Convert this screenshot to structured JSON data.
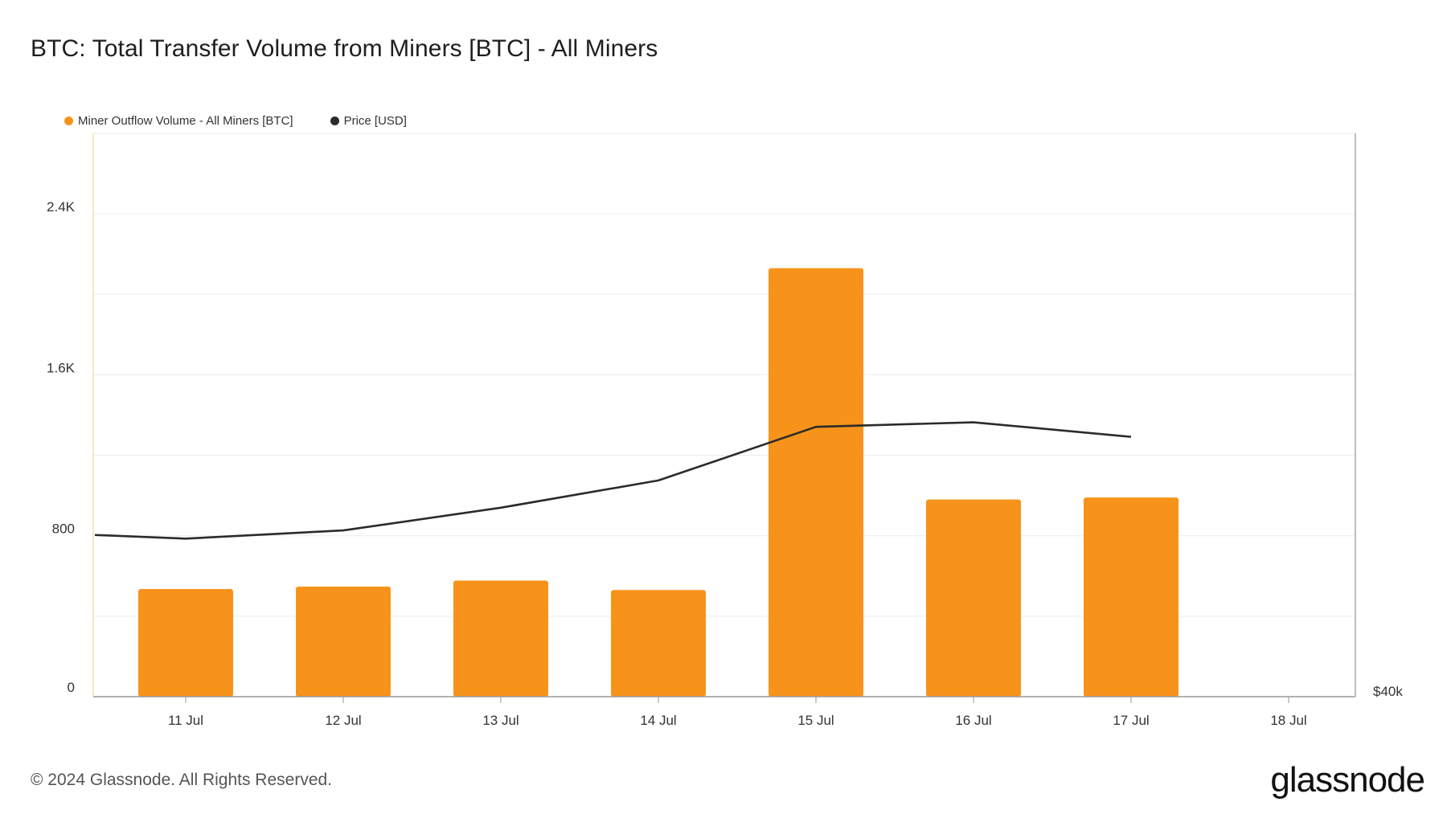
{
  "header": {
    "title": "BTC: Total Transfer Volume from Miners [BTC] - All Miners"
  },
  "legend": {
    "items": [
      {
        "label": "Miner Outflow Volume - All Miners [BTC]",
        "color": "#F7931A"
      },
      {
        "label": "Price [USD]",
        "color": "#2b2b2b"
      }
    ]
  },
  "footer": {
    "copyright": "© 2024 Glassnode. All Rights Reserved.",
    "brand": "glassnode"
  },
  "chart_data": {
    "type": "bar",
    "categories": [
      "11 Jul",
      "12 Jul",
      "13 Jul",
      "14 Jul",
      "15 Jul",
      "16 Jul",
      "17 Jul",
      "18 Jul"
    ],
    "series": [
      {
        "name": "Miner Outflow Volume - All Miners [BTC]",
        "type": "bar",
        "axis": "left",
        "color": "#F7931A",
        "values": [
          535,
          547,
          577,
          530,
          2130,
          980,
          990,
          null
        ]
      },
      {
        "name": "Price [USD]",
        "type": "line",
        "axis": "right",
        "color": "#2b2b2b",
        "x": [
          "10 Jul",
          "11 Jul",
          "12 Jul",
          "13 Jul",
          "14 Jul",
          "15 Jul",
          "16 Jul",
          "17 Jul"
        ],
        "values": [
          57800,
          57400,
          58300,
          60800,
          63800,
          69700,
          70200,
          68600
        ]
      }
    ],
    "y_left": {
      "ticks": [
        0,
        800,
        1600,
        2400
      ],
      "tick_labels": [
        "0",
        "800",
        "1.6K",
        "2.4K"
      ],
      "range": [
        0,
        2800
      ]
    },
    "y_right": {
      "ticks": [
        40000
      ],
      "tick_labels": [
        "$40k"
      ],
      "range": [
        40000,
        102000
      ]
    },
    "grid": true,
    "legend_position": "top-left"
  }
}
